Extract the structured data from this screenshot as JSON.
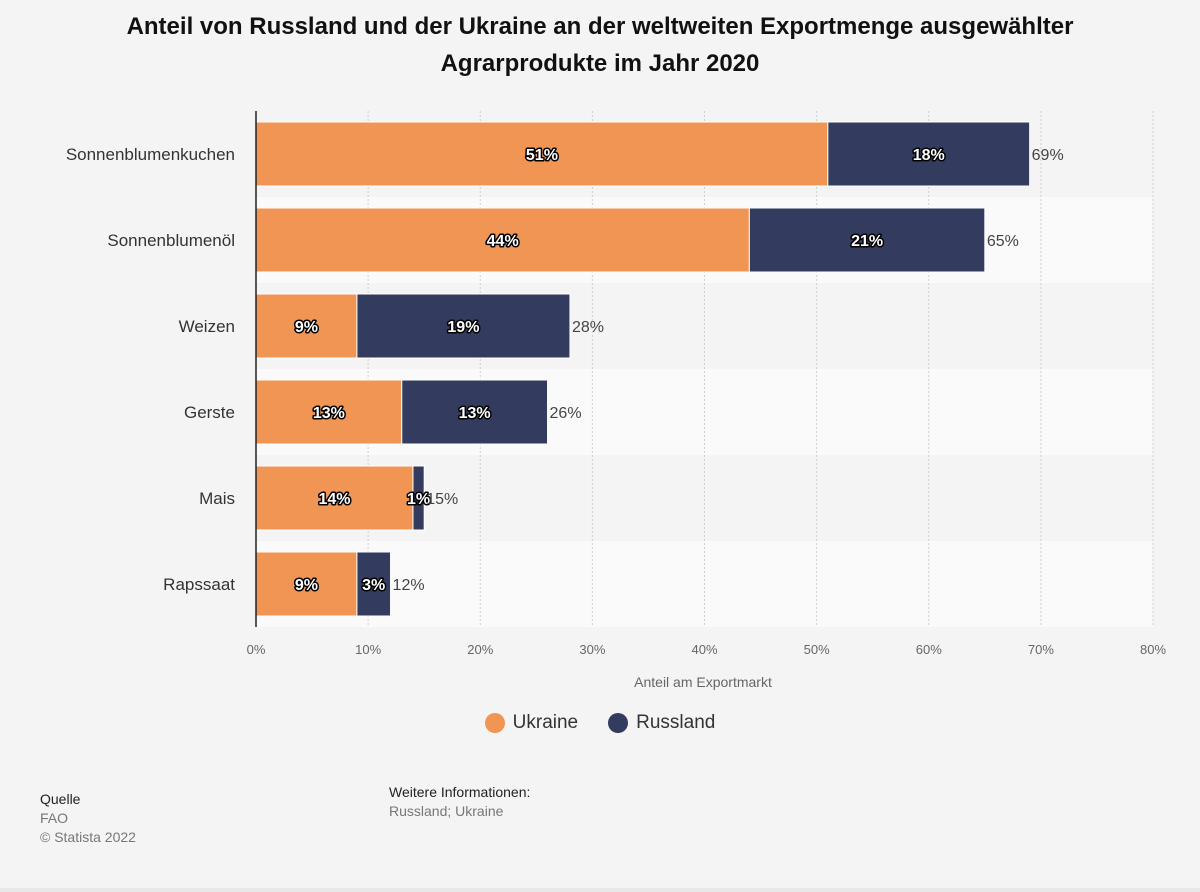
{
  "chart_data": {
    "type": "bar",
    "orientation": "horizontal",
    "stacked": true,
    "title": "Anteil von Russland und der Ukraine an der weltweiten Exportmenge ausgewählter Agrarprodukte im Jahr 2020",
    "categories": [
      "Sonnenblumenkuchen",
      "Sonnenblumenöl",
      "Weizen",
      "Gerste",
      "Mais",
      "Rapssaat"
    ],
    "series": [
      {
        "name": "Ukraine",
        "color": "#f09553",
        "values": [
          51,
          44,
          9,
          13,
          14,
          9
        ],
        "labels": [
          "51%",
          "44%",
          "9%",
          "13%",
          "14%",
          "9%"
        ]
      },
      {
        "name": "Russland",
        "color": "#333c5e",
        "values": [
          18,
          21,
          19,
          13,
          1,
          3
        ],
        "labels": [
          "18%",
          "21%",
          "19%",
          "13%",
          "1%",
          "3%"
        ]
      }
    ],
    "totals": [
      69,
      65,
      28,
      26,
      15,
      12
    ],
    "total_labels": [
      "69%",
      "65%",
      "28%",
      "26%",
      "15%",
      "12%"
    ],
    "xlabel": "Anteil am Exportmarkt",
    "xlim": [
      0,
      80
    ],
    "xticks": [
      0,
      10,
      20,
      30,
      40,
      50,
      60,
      70,
      80
    ],
    "xtick_labels": [
      "0%",
      "10%",
      "20%",
      "30%",
      "40%",
      "50%",
      "60%",
      "70%",
      "80%"
    ],
    "grid": true,
    "legend_position": "bottom"
  },
  "source": {
    "heading": "Quelle",
    "name": "FAO",
    "copyright": "© Statista 2022"
  },
  "info": {
    "heading": "Weitere Informationen:",
    "text": "Russland; Ukraine"
  }
}
